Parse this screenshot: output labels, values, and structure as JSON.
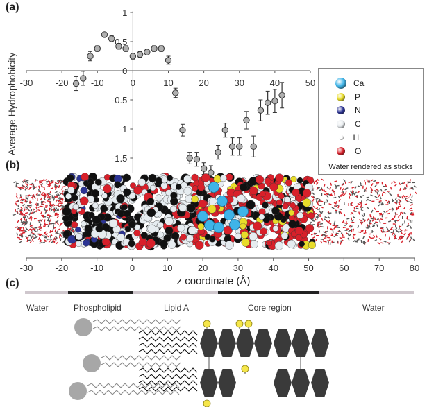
{
  "panels": {
    "a": "(a)",
    "b": "(b)",
    "c": "(c)"
  },
  "chart_data": {
    "type": "scatter",
    "ylabel": "Average Hydrophobicity",
    "xlim": [
      -30,
      50
    ],
    "ylim": [
      -1.75,
      1
    ],
    "xticks": [
      -30,
      -20,
      -10,
      0,
      10,
      20,
      30,
      40,
      50
    ],
    "yticks": [
      1,
      0.5,
      0,
      -0.5,
      -1,
      -1.5
    ],
    "ytick_labels": [
      "1",
      "0.5",
      "0",
      "-0.5",
      "-1",
      "-1.5"
    ],
    "x": [
      -16,
      -14,
      -12,
      -10,
      -8,
      -6,
      -4,
      -2,
      0,
      2,
      4,
      6,
      8,
      10,
      12,
      14,
      16,
      18,
      20,
      22,
      24,
      26,
      28,
      30,
      32,
      34,
      36,
      38,
      40,
      42
    ],
    "y": [
      -0.22,
      -0.13,
      0.25,
      0.38,
      0.62,
      0.55,
      0.42,
      0.38,
      0.25,
      0.28,
      0.32,
      0.38,
      0.38,
      0.18,
      -0.38,
      -1.02,
      -1.5,
      -1.52,
      -1.68,
      -1.75,
      -1.4,
      -1.02,
      -1.3,
      -1.3,
      -0.85,
      -1.3,
      -0.68,
      -0.55,
      -0.52,
      -0.42
    ],
    "err": [
      0.12,
      0.12,
      0.08,
      0.05,
      0.04,
      0.05,
      0.05,
      0.05,
      0.05,
      0.05,
      0.05,
      0.05,
      0.05,
      0.07,
      0.08,
      0.1,
      0.1,
      0.12,
      0.1,
      0.12,
      0.12,
      0.12,
      0.15,
      0.15,
      0.15,
      0.18,
      0.18,
      0.2,
      0.2,
      0.22
    ]
  },
  "legend": {
    "items": [
      {
        "label": "Ca",
        "color": "#3fb4e8"
      },
      {
        "label": "P",
        "color": "#e8dc2a"
      },
      {
        "label": "N",
        "color": "#2c3494"
      },
      {
        "label": "C",
        "color": "#e8ecef"
      },
      {
        "label": "H",
        "color": "#ffffff"
      },
      {
        "label": "O",
        "color": "#d8202a"
      }
    ],
    "note": "Water rendered as sticks"
  },
  "axis_b": {
    "ticks": [
      "-30",
      "-20",
      "-10",
      "0",
      "10",
      "20",
      "30",
      "40",
      "50",
      "60",
      "70",
      "80"
    ],
    "label": "z coordinate (Å)"
  },
  "regions": [
    {
      "label": "Water"
    },
    {
      "label": "Phospholipid"
    },
    {
      "label": "Lipid A"
    },
    {
      "label": "Core region"
    },
    {
      "label": "Water"
    }
  ],
  "colors": {
    "marker_fill": "#b0b0b0",
    "marker_stroke": "#333333",
    "bar_dark": "#222222",
    "bar_light": "#cfc7cd",
    "sugar": "#3a3a3a",
    "phosphate": "#f5e64a",
    "head": "#a7a7a7"
  }
}
